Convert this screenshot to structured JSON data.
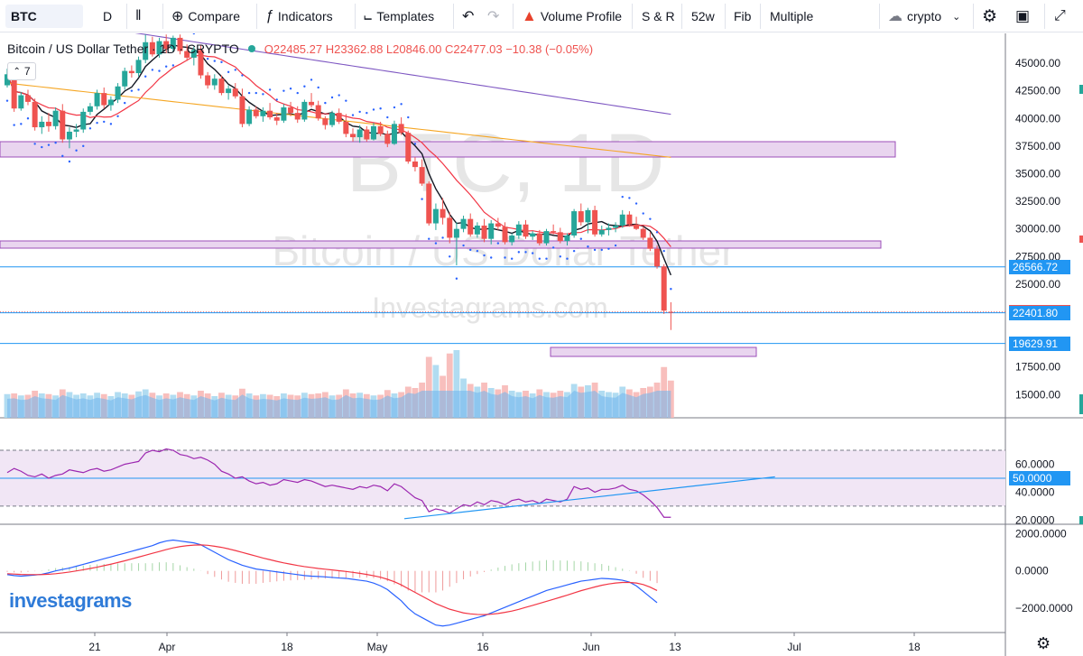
{
  "toolbar": {
    "symbol": "BTC",
    "interval": "D",
    "compare": "Compare",
    "indicators": "Indicators",
    "templates": "Templates",
    "volume_profile": "Volume Profile",
    "snr": "S & R",
    "week52": "52w",
    "fib": "Fib",
    "multiple": "Multiple",
    "market": "crypto"
  },
  "legend": {
    "title": "Bitcoin / US Dollar Tether · 1D · CRYPTO",
    "ohlc": "O22485.27 H23362.88 L20846.00 C22477.03 −10.38 (−0.05%)",
    "indicator_count": "7"
  },
  "watermark": {
    "symbol": "BTC, 1D",
    "name": "Bitcoin / US Dollar Tether",
    "site": "Investagrams.com"
  },
  "brand": "investagrams",
  "chart_data": {
    "type": "candlestick",
    "price_axis": {
      "ylim": [
        12900,
        47700
      ],
      "ticks": [
        45000,
        42500,
        40000,
        37500,
        35000,
        32500,
        30000,
        27500,
        25000,
        17500,
        15000
      ]
    },
    "x_ticks": [
      "21",
      "Apr",
      "18",
      "May",
      "16",
      "Jun",
      "13",
      "Jul",
      "18"
    ],
    "price_tags": [
      {
        "label": "26566.72",
        "value": 26566.72,
        "color": "#2196f3"
      },
      {
        "label": "22477.03",
        "value": 22477.03,
        "color": "#ef5350"
      },
      {
        "label": "22401.80",
        "value": 22401.8,
        "color": "#2196f3"
      },
      {
        "label": "19629.91",
        "value": 19629.91,
        "color": "#2196f3"
      }
    ],
    "candles": [
      [
        43000,
        44500,
        42800,
        44000
      ],
      [
        44000,
        44200,
        40600,
        40900
      ],
      [
        40900,
        42400,
        40700,
        42100
      ],
      [
        42100,
        42600,
        41200,
        41500
      ],
      [
        41500,
        41800,
        38900,
        39200
      ],
      [
        39200,
        40200,
        38600,
        39700
      ],
      [
        39700,
        40500,
        38800,
        39300
      ],
      [
        39300,
        41000,
        39000,
        40700
      ],
      [
        40700,
        41300,
        37800,
        38100
      ],
      [
        38100,
        39200,
        37300,
        38800
      ],
      [
        38800,
        39500,
        38300,
        39000
      ],
      [
        39000,
        40900,
        38700,
        40600
      ],
      [
        40600,
        41400,
        40300,
        41100
      ],
      [
        41100,
        42600,
        40800,
        42300
      ],
      [
        42300,
        42800,
        40900,
        41200
      ],
      [
        41200,
        42000,
        40700,
        41700
      ],
      [
        41700,
        43200,
        41400,
        42900
      ],
      [
        42900,
        44600,
        42600,
        44300
      ],
      [
        44300,
        44800,
        43700,
        44100
      ],
      [
        44100,
        45600,
        43800,
        45300
      ],
      [
        45300,
        47600,
        45000,
        46900
      ],
      [
        46900,
        47400,
        45600,
        45800
      ],
      [
        45800,
        47300,
        45500,
        47000
      ],
      [
        47000,
        47600,
        45900,
        46300
      ],
      [
        46300,
        47500,
        46000,
        47300
      ],
      [
        47300,
        47600,
        45800,
        46100
      ],
      [
        46100,
        46700,
        45200,
        45500
      ],
      [
        45500,
        46500,
        44800,
        46200
      ],
      [
        46200,
        46600,
        43600,
        43900
      ],
      [
        43900,
        44200,
        42700,
        43000
      ],
      [
        43000,
        44000,
        42600,
        43600
      ],
      [
        43600,
        43900,
        42100,
        42300
      ],
      [
        42300,
        43000,
        41700,
        42700
      ],
      [
        42700,
        43200,
        41800,
        42000
      ],
      [
        42000,
        42700,
        39200,
        39500
      ],
      [
        39500,
        41100,
        39300,
        40800
      ],
      [
        40800,
        41100,
        40000,
        40200
      ],
      [
        40200,
        41000,
        39700,
        40700
      ],
      [
        40700,
        41400,
        39900,
        40100
      ],
      [
        40100,
        40500,
        39400,
        39800
      ],
      [
        39800,
        41300,
        39600,
        41000
      ],
      [
        41000,
        41500,
        40200,
        40500
      ],
      [
        40500,
        41100,
        39600,
        39900
      ],
      [
        39900,
        41700,
        39700,
        41500
      ],
      [
        41500,
        42300,
        41000,
        41200
      ],
      [
        41200,
        41600,
        39800,
        40000
      ],
      [
        40000,
        40200,
        39000,
        39400
      ],
      [
        39400,
        40700,
        39200,
        40500
      ],
      [
        40500,
        40900,
        39500,
        39700
      ],
      [
        39700,
        40400,
        38300,
        38600
      ],
      [
        38600,
        39100,
        37900,
        38300
      ],
      [
        38300,
        39400,
        37800,
        39000
      ],
      [
        39000,
        39300,
        37900,
        38100
      ],
      [
        38100,
        39600,
        38000,
        39300
      ],
      [
        39300,
        39700,
        38400,
        38600
      ],
      [
        38600,
        38900,
        37400,
        37700
      ],
      [
        37700,
        39800,
        37600,
        39500
      ],
      [
        39500,
        40100,
        38500,
        38700
      ],
      [
        38700,
        38900,
        35900,
        36100
      ],
      [
        36100,
        36500,
        35200,
        35600
      ],
      [
        35600,
        36300,
        33900,
        34100
      ],
      [
        34100,
        34300,
        30300,
        30500
      ],
      [
        30500,
        32300,
        29900,
        31800
      ],
      [
        31800,
        32800,
        30400,
        31000
      ],
      [
        31000,
        31500,
        28700,
        29200
      ],
      [
        29200,
        30600,
        26700,
        30000
      ],
      [
        30000,
        31200,
        29700,
        30900
      ],
      [
        30900,
        31400,
        29300,
        29500
      ],
      [
        29500,
        30600,
        29200,
        30300
      ],
      [
        30300,
        30900,
        28800,
        29100
      ],
      [
        29100,
        30800,
        28600,
        30500
      ],
      [
        30500,
        31000,
        29900,
        30200
      ],
      [
        30200,
        30600,
        28600,
        28800
      ],
      [
        28800,
        29600,
        28500,
        29400
      ],
      [
        29400,
        30700,
        29100,
        30400
      ],
      [
        30400,
        30800,
        29100,
        29300
      ],
      [
        29300,
        29800,
        29000,
        29600
      ],
      [
        29600,
        29900,
        28500,
        28700
      ],
      [
        28700,
        30000,
        28500,
        29800
      ],
      [
        29800,
        30400,
        29500,
        29700
      ],
      [
        29700,
        30100,
        28700,
        28900
      ],
      [
        28900,
        29600,
        28500,
        29400
      ],
      [
        29400,
        31800,
        29200,
        31600
      ],
      [
        31600,
        32300,
        30300,
        30600
      ],
      [
        30600,
        31900,
        29600,
        31700
      ],
      [
        31700,
        32100,
        29300,
        29500
      ],
      [
        29500,
        30300,
        29300,
        29900
      ],
      [
        29900,
        30500,
        29400,
        30100
      ],
      [
        30100,
        30600,
        29700,
        30300
      ],
      [
        30300,
        31700,
        30100,
        31300
      ],
      [
        31300,
        31600,
        30200,
        30400
      ],
      [
        30400,
        31100,
        29900,
        30000
      ],
      [
        30000,
        30200,
        29000,
        29200
      ],
      [
        29200,
        29700,
        28000,
        28200
      ],
      [
        28200,
        28500,
        26400,
        26600
      ],
      [
        26600,
        26800,
        22300,
        22600
      ],
      [
        22485,
        23362,
        20846,
        22477
      ]
    ],
    "volumes": [
      0.35,
      0.36,
      0.33,
      0.34,
      0.4,
      0.36,
      0.35,
      0.33,
      0.42,
      0.38,
      0.34,
      0.36,
      0.33,
      0.37,
      0.35,
      0.32,
      0.38,
      0.36,
      0.34,
      0.39,
      0.42,
      0.37,
      0.33,
      0.36,
      0.34,
      0.38,
      0.35,
      0.33,
      0.4,
      0.36,
      0.32,
      0.37,
      0.34,
      0.33,
      0.43,
      0.36,
      0.33,
      0.35,
      0.34,
      0.32,
      0.36,
      0.34,
      0.33,
      0.37,
      0.35,
      0.36,
      0.38,
      0.33,
      0.34,
      0.42,
      0.36,
      0.37,
      0.35,
      0.33,
      0.34,
      0.41,
      0.36,
      0.38,
      0.46,
      0.44,
      0.52,
      0.9,
      0.78,
      0.62,
      0.95,
      1.0,
      0.58,
      0.5,
      0.46,
      0.52,
      0.44,
      0.42,
      0.48,
      0.4,
      0.38,
      0.4,
      0.36,
      0.42,
      0.38,
      0.37,
      0.4,
      0.38,
      0.5,
      0.46,
      0.48,
      0.52,
      0.4,
      0.38,
      0.37,
      0.46,
      0.42,
      0.38,
      0.44,
      0.46,
      0.52,
      0.75,
      0.55
    ],
    "volume_axis": {
      "ylim": [
        0,
        1
      ]
    },
    "rsi": {
      "ylim": [
        17,
        92
      ],
      "ticks": [
        60,
        50,
        40,
        20
      ],
      "tick_labels": [
        "60.0000",
        "50.0000",
        "40.0000",
        "20.0000"
      ],
      "band": [
        30,
        70
      ],
      "midline_label": "50.0000",
      "values": [
        54,
        57,
        55,
        52,
        51,
        53,
        50,
        52,
        53,
        56,
        55,
        54,
        56,
        57,
        55,
        56,
        58,
        60,
        61,
        62,
        68,
        70,
        69,
        71,
        70,
        67,
        66,
        64,
        65,
        63,
        60,
        55,
        53,
        50,
        51,
        48,
        46,
        47,
        45,
        46,
        49,
        48,
        47,
        49,
        48,
        46,
        44,
        45,
        44,
        43,
        42,
        44,
        43,
        45,
        44,
        41,
        46,
        44,
        40,
        36,
        34,
        26,
        28,
        27,
        25,
        28,
        31,
        30,
        33,
        31,
        34,
        33,
        31,
        34,
        35,
        33,
        34,
        32,
        35,
        34,
        33,
        35,
        44,
        42,
        43,
        40,
        42,
        42,
        43,
        45,
        42,
        41,
        38,
        34,
        29,
        22,
        22
      ],
      "trendline": [
        [
          0,
          21
        ],
        [
          98,
          51
        ]
      ]
    },
    "macd": {
      "ylim": [
        -3300,
        2400
      ],
      "ticks": [
        2000,
        0,
        -2000
      ],
      "tick_labels": [
        "2000.0000",
        "0.0000",
        "−2000.0000"
      ],
      "macd": [
        -200,
        -250,
        -280,
        -250,
        -220,
        -180,
        -100,
        0,
        80,
        150,
        250,
        350,
        450,
        550,
        650,
        750,
        850,
        950,
        1050,
        1150,
        1250,
        1350,
        1500,
        1600,
        1650,
        1600,
        1550,
        1500,
        1400,
        1200,
        1000,
        800,
        600,
        450,
        300,
        200,
        100,
        50,
        0,
        -50,
        -100,
        -150,
        -200,
        -250,
        -280,
        -300,
        -320,
        -350,
        -380,
        -400,
        -450,
        -500,
        -550,
        -650,
        -800,
        -1000,
        -1300,
        -1600,
        -2000,
        -2300,
        -2500,
        -2700,
        -2900,
        -2950,
        -2900,
        -2800,
        -2700,
        -2600,
        -2500,
        -2400,
        -2250,
        -2100,
        -1950,
        -1800,
        -1650,
        -1500,
        -1350,
        -1200,
        -1050,
        -950,
        -850,
        -750,
        -650,
        -550,
        -500,
        -450,
        -400,
        -420,
        -450,
        -500,
        -600,
        -800,
        -1100,
        -1400,
        -1700
      ],
      "signal": [
        -150,
        -170,
        -190,
        -200,
        -200,
        -195,
        -180,
        -150,
        -110,
        -60,
        0,
        60,
        130,
        200,
        280,
        360,
        450,
        540,
        640,
        740,
        840,
        940,
        1040,
        1140,
        1230,
        1300,
        1350,
        1380,
        1390,
        1370,
        1320,
        1260,
        1180,
        1090,
        990,
        890,
        790,
        690,
        600,
        510,
        430,
        360,
        290,
        230,
        180,
        130,
        90,
        50,
        10,
        -30,
        -80,
        -130,
        -190,
        -260,
        -340,
        -450,
        -580,
        -750,
        -950,
        -1150,
        -1350,
        -1550,
        -1750,
        -1900,
        -2050,
        -2150,
        -2250,
        -2300,
        -2330,
        -2340,
        -2320,
        -2280,
        -2220,
        -2150,
        -2060,
        -1950,
        -1850,
        -1740,
        -1630,
        -1520,
        -1410,
        -1300,
        -1180,
        -1060,
        -960,
        -860,
        -770,
        -700,
        -650,
        -620,
        -620,
        -650,
        -730,
        -870,
        -1050
      ]
    }
  }
}
